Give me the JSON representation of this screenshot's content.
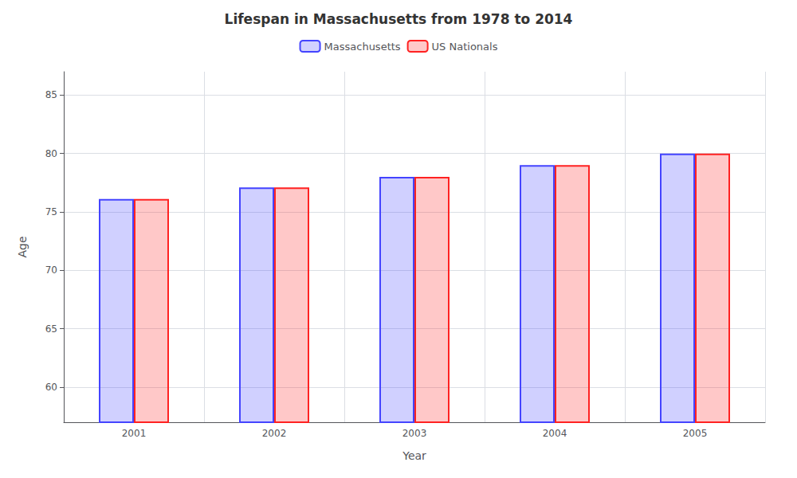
{
  "chart_data": {
    "type": "bar",
    "title": "Lifespan in Massachusetts from 1978 to 2014",
    "xlabel": "Year",
    "ylabel": "Age",
    "categories": [
      "2001",
      "2002",
      "2003",
      "2004",
      "2005"
    ],
    "series": [
      {
        "name": "Massachusetts",
        "color": "#4444ff",
        "values": [
          76.1,
          77.1,
          78.0,
          79.0,
          80.0
        ]
      },
      {
        "name": "US Nationals",
        "color": "#ff2222",
        "values": [
          76.1,
          77.1,
          78.0,
          79.0,
          80.0
        ]
      }
    ],
    "ylim": [
      57,
      87
    ],
    "yticks": [
      60,
      65,
      70,
      75,
      80,
      85
    ],
    "grid": true,
    "legend": "top"
  }
}
